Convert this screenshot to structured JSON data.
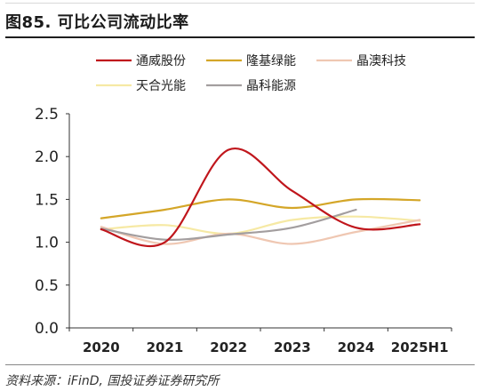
{
  "title": "图85. 可比公司流动比率",
  "source": "资料来源：iFinD, 国投证券证券研究所",
  "chart_data": {
    "type": "line",
    "title": "",
    "xlabel": "",
    "ylabel": "",
    "x": [
      "2020",
      "2021",
      "2022",
      "2023",
      "2024",
      "2025H1"
    ],
    "yticks": [
      "0.0",
      "0.5",
      "1.0",
      "1.5",
      "2.0",
      "2.5"
    ],
    "ylim": [
      0,
      2.5
    ],
    "grid": false,
    "legend_position": "top",
    "series": [
      {
        "name": "通威股份",
        "color": "#c0161c",
        "width": 2.2,
        "values": [
          1.15,
          1.0,
          2.08,
          1.6,
          1.17,
          1.21
        ]
      },
      {
        "name": "隆基绿能",
        "color": "#d4a628",
        "width": 2.2,
        "values": [
          1.28,
          1.38,
          1.5,
          1.4,
          1.5,
          1.49
        ]
      },
      {
        "name": "晶澳科技",
        "color": "#efc7b2",
        "width": 2.2,
        "values": [
          1.18,
          0.98,
          1.1,
          0.98,
          1.12,
          1.26
        ]
      },
      {
        "name": "天合光能",
        "color": "#f6e9a4",
        "width": 2.2,
        "values": [
          1.15,
          1.2,
          1.1,
          1.26,
          1.3,
          1.25
        ]
      },
      {
        "name": "晶科能源",
        "color": "#a39e9f",
        "width": 2.2,
        "values": [
          1.16,
          1.03,
          1.09,
          1.17,
          1.38,
          null
        ]
      }
    ]
  }
}
